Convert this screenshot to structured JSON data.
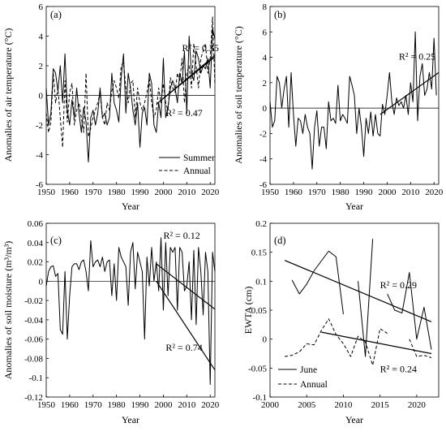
{
  "chart_data": [
    {
      "panel": "a",
      "panel_label": "(a)",
      "type": "line",
      "xlabel": "Year",
      "ylabel": "Anomalies of air temperature (°C)",
      "xlim": [
        1950,
        2022
      ],
      "ylim": [
        -6,
        6
      ],
      "xticks": [
        1950,
        1960,
        1970,
        1980,
        1990,
        2000,
        2010,
        2020
      ],
      "yticks": [
        -6,
        -4,
        -2,
        0,
        2,
        4,
        6
      ],
      "xtick_labels": [
        "1950",
        "1960",
        "1970",
        "1980",
        "1990",
        "2000",
        "2010",
        "2020"
      ],
      "ytick_labels": [
        "-6",
        "-4",
        "-2",
        "0",
        "2",
        "4",
        "6"
      ],
      "zero_line": true,
      "legend_position": "bottom-right",
      "x_start": 1950,
      "series": [
        {
          "name": "Summer",
          "style": "solid",
          "values": [
            0.5,
            -2.0,
            -1.2,
            1.8,
            1.5,
            0.3,
            2.0,
            -0.5,
            2.8,
            -1.0,
            -2.0,
            -0.3,
            -1.5,
            0.5,
            -1.2,
            -2.5,
            -0.8,
            -1.8,
            -4.5,
            -1.5,
            -1.0,
            -2.0,
            -1.2,
            0.5,
            -1.5,
            -1.2,
            -2.0,
            -1.5,
            1.5,
            -0.5,
            -1.0,
            -1.8,
            1.2,
            2.8,
            -1.2,
            1.5,
            0.5,
            -1.0,
            -2.0,
            -0.5,
            -3.5,
            -1.2,
            -0.8,
            -2.0,
            1.5,
            0.8,
            -2.0,
            -2.5,
            -0.5,
            -1.5,
            2.5,
            -1.5,
            -0.8,
            0.5,
            1.0,
            0.5,
            -0.5,
            1.5,
            0.8,
            3.0,
            -1.2,
            4.0,
            1.5,
            1.0,
            3.0,
            2.5,
            1.5,
            2.0,
            1.8,
            2.5,
            0.5,
            4.5,
            3.8
          ]
        },
        {
          "name": "Annual",
          "style": "dashed",
          "values": [
            -1.2,
            -2.5,
            -1.8,
            1.5,
            -0.5,
            0.5,
            -1.5,
            -3.5,
            1.0,
            -1.8,
            0.2,
            0.8,
            -2.0,
            -1.0,
            -0.5,
            -1.5,
            -2.5,
            1.5,
            -2.8,
            -2.2,
            -1.5,
            -1.0,
            -0.5,
            0.2,
            -1.5,
            -2.0,
            -0.5,
            -1.0,
            0.3,
            1.0,
            0.5,
            -0.2,
            2.0,
            2.2,
            0.5,
            -0.5,
            0.8,
            1.0,
            -1.5,
            0.5,
            -0.5,
            -1.0,
            -0.5,
            0.2,
            1.2,
            -0.5,
            -1.5,
            -1.0,
            0.5,
            -0.5,
            0.8,
            -0.5,
            -1.0,
            1.2,
            0.5,
            0.2,
            1.5,
            1.0,
            2.5,
            -0.5,
            1.5,
            2.0,
            0.5,
            3.5,
            2.0,
            0.5,
            2.5,
            3.0,
            3.5,
            1.5,
            2.5,
            5.3,
            0.8
          ]
        }
      ],
      "trendlines": [
        {
          "x": [
            1997,
            2022
          ],
          "y": [
            -0.6,
            2.7
          ]
        },
        {
          "x": [
            2000,
            2022
          ],
          "y": [
            -0.2,
            2.6
          ]
        }
      ],
      "annotations": [
        {
          "text": "R² = 0.35",
          "x": 2008,
          "y": 3.0
        },
        {
          "text": "R² = 0.47",
          "x": 2001,
          "y": -1.4
        }
      ]
    },
    {
      "panel": "b",
      "panel_label": "(b)",
      "type": "line",
      "xlabel": "Year",
      "ylabel": "Anomalies of soil temperature (°C)",
      "xlim": [
        1950,
        2022
      ],
      "ylim": [
        -6,
        8
      ],
      "xticks": [
        1950,
        1960,
        1970,
        1980,
        1990,
        2000,
        2010,
        2020
      ],
      "yticks": [
        -6,
        -4,
        -2,
        0,
        2,
        4,
        6,
        8
      ],
      "xtick_labels": [
        "1950",
        "1960",
        "1970",
        "1980",
        "1990",
        "2000",
        "2010",
        "2020"
      ],
      "ytick_labels": [
        "-6",
        "-4",
        "-2",
        "0",
        "2",
        "4",
        "6",
        "8"
      ],
      "zero_line": true,
      "x_start": 1950,
      "series": [
        {
          "name": "",
          "style": "solid",
          "values": [
            0.5,
            -1.5,
            -1.0,
            2.5,
            2.0,
            0.0,
            1.5,
            2.5,
            -1.5,
            2.8,
            -0.5,
            -3.0,
            -0.8,
            -1.0,
            -2.0,
            -0.5,
            -1.5,
            -2.0,
            -4.8,
            -1.5,
            -0.2,
            -3.0,
            -1.5,
            -1.5,
            -3.2,
            0.5,
            -1.0,
            -0.8,
            -1.2,
            1.8,
            -1.0,
            -0.5,
            -0.8,
            -1.2,
            2.5,
            1.8,
            1.0,
            -2.0,
            0.0,
            -1.5,
            -3.8,
            -0.8,
            -2.0,
            -0.3,
            -2.2,
            -0.5,
            -2.0,
            -2.2,
            0.3,
            -0.5,
            1.0,
            2.8,
            0.5,
            -0.5,
            0.8,
            0.2,
            0.5,
            0.0,
            1.0,
            -0.5,
            2.0,
            0.5,
            6.0,
            -1.0,
            2.5,
            3.5,
            1.0,
            1.5,
            2.8,
            1.5,
            5.5,
            1.0
          ]
        }
      ],
      "trendlines": [
        {
          "x": [
            1997,
            2022
          ],
          "y": [
            -0.5,
            2.8
          ]
        }
      ],
      "annotations": [
        {
          "text": "R² = 0.25",
          "x": 2005,
          "y": 3.8
        }
      ]
    },
    {
      "panel": "c",
      "panel_label": "(c)",
      "type": "line",
      "xlabel": "Year",
      "ylabel": "Anomalies of soil moisture (m³/m³)",
      "xlim": [
        1950,
        2022
      ],
      "ylim": [
        -0.12,
        0.06
      ],
      "xticks": [
        1950,
        1960,
        1970,
        1980,
        1990,
        2000,
        2010,
        2020
      ],
      "yticks": [
        -0.12,
        -0.1,
        -0.08,
        -0.06,
        -0.04,
        -0.02,
        0,
        0.02,
        0.04,
        0.06
      ],
      "xtick_labels": [
        "1950",
        "1960",
        "1970",
        "1980",
        "1990",
        "2000",
        "2010",
        "2020"
      ],
      "ytick_labels": [
        "-0.12",
        "-0.1",
        "-0.08",
        "-0.06",
        "-0.04",
        "-0.02",
        "0",
        "0.02",
        "0.04",
        "0.06"
      ],
      "zero_line": true,
      "x_start": 1950,
      "series": [
        {
          "name": "",
          "style": "solid",
          "values": [
            -0.005,
            0.01,
            0.015,
            0.016,
            0.005,
            0.008,
            -0.05,
            -0.055,
            0.01,
            -0.06,
            -0.015,
            0.015,
            0.018,
            0.018,
            0.012,
            0.02,
            0.022,
            0.01,
            -0.01,
            0.042,
            0.015,
            0.02,
            0.022,
            0.015,
            0.025,
            0.01,
            0.02,
            0.022,
            -0.015,
            0.018,
            -0.02,
            0.035,
            0.025,
            0.02,
            0.015,
            -0.025,
            0.03,
            0.04,
            -0.008,
            0.03,
            0.02,
            0.01,
            -0.06,
            0.025,
            -0.005,
            0.035,
            0.0,
            0.02,
            -0.01,
            0.045,
            -0.03,
            0.04,
            -0.015,
            0.035,
            0.03,
            0.035,
            -0.03,
            0.035,
            0.03,
            -0.01,
            -0.005,
            0.02,
            -0.04,
            0.032,
            -0.045,
            0.035,
            0.01,
            -0.035,
            0.03,
            0.01,
            -0.107,
            0.03,
            0.01,
            -0.06,
            0.02,
            -0.05,
            -0.075,
            0.025,
            -0.06,
            0.022
          ]
        }
      ],
      "trendlines": [
        {
          "x": [
            1997,
            2022
          ],
          "y": [
            0.018,
            -0.029
          ]
        },
        {
          "x": [
            1997,
            2022
          ],
          "y": [
            0.0,
            -0.092
          ]
        }
      ],
      "annotations": [
        {
          "text": "R² = 0.12",
          "x": 2000,
          "y": 0.044
        },
        {
          "text": "R² = 0.74",
          "x": 2001,
          "y": -0.072
        }
      ]
    },
    {
      "panel": "d",
      "panel_label": "(d)",
      "type": "line",
      "xlabel": "Year",
      "ylabel": "EWTA (cm)",
      "xlim": [
        2000,
        2023
      ],
      "ylim": [
        -0.1,
        0.2
      ],
      "xticks": [
        2000,
        2005,
        2010,
        2015,
        2020
      ],
      "yticks": [
        -0.1,
        -0.05,
        0,
        0.05,
        0.1,
        0.15,
        0.2
      ],
      "xtick_labels": [
        "2000",
        "2005",
        "2010",
        "2015",
        "2020"
      ],
      "ytick_labels": [
        "-0.1",
        "-0.05",
        "0",
        "0.05",
        "0.1",
        "0.15",
        "0.2"
      ],
      "zero_line": false,
      "legend_position": "bottom-left",
      "series": [
        {
          "name": "June",
          "style": "solid",
          "segments": [
            {
              "x": [
                2003,
                2004,
                2005,
                2006,
                2007,
                2008,
                2009,
                2010
              ],
              "y": [
                0.102,
                0.078,
                0.095,
                0.118,
                0.135,
                0.152,
                0.142,
                0.043
              ]
            },
            {
              "x": [
                2012,
                2013,
                2014
              ],
              "y": [
                0.1,
                -0.03,
                0.173
              ]
            },
            {
              "x": [
                2016,
                2017,
                2018,
                2019,
                2020,
                2021,
                2022
              ],
              "y": [
                0.078,
                0.05,
                0.045,
                0.115,
                0.0,
                0.055,
                -0.018
              ]
            }
          ]
        },
        {
          "name": "Annual",
          "style": "dashed",
          "segments": [
            {
              "x": [
                2002,
                2003,
                2004,
                2005,
                2006,
                2007,
                2008,
                2009,
                2010,
                2011,
                2012,
                2013,
                2014,
                2015,
                2016
              ],
              "y": [
                -0.03,
                -0.028,
                -0.022,
                -0.008,
                -0.01,
                0.015,
                0.035,
                0.008,
                -0.008,
                -0.03,
                0.005,
                -0.005,
                -0.045,
                0.018,
                0.01
              ]
            },
            {
              "x": [
                2019,
                2020,
                2021,
                2022
              ],
              "y": [
                0.0,
                -0.03,
                -0.028,
                -0.032
              ]
            }
          ]
        }
      ],
      "trendlines": [
        {
          "x": [
            2002,
            2022
          ],
          "y": [
            0.136,
            0.03
          ]
        },
        {
          "x": [
            2007,
            2022
          ],
          "y": [
            0.012,
            -0.025
          ]
        }
      ],
      "annotations": [
        {
          "text": "R² = 0.29",
          "x": 2015,
          "y": 0.088
        },
        {
          "text": "R² = 0.24",
          "x": 2015,
          "y": -0.057
        }
      ]
    }
  ]
}
